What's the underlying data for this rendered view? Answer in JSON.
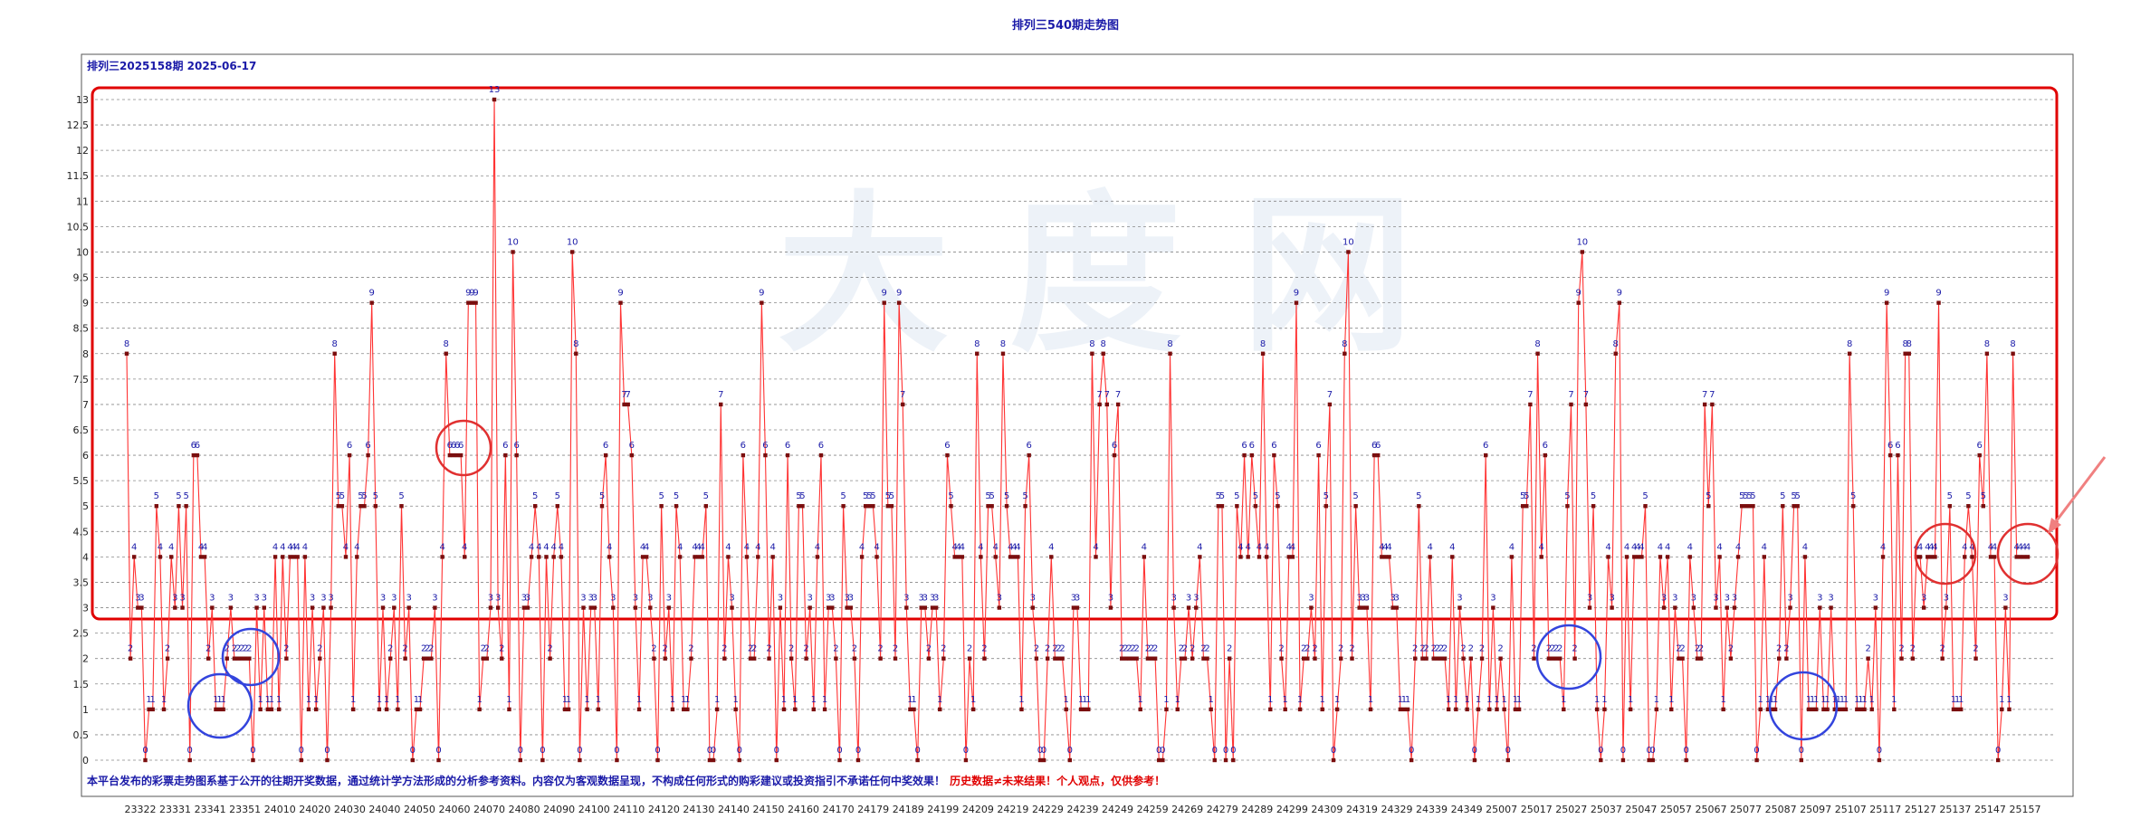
{
  "chart_data": {
    "type": "line",
    "title": "排列三540期走势图",
    "subtitle": "排列三2025158期 2025-06-17",
    "ylim": [
      0,
      13.5
    ],
    "yticks": [
      0,
      0.5,
      1,
      1.5,
      2,
      2.5,
      3,
      3.5,
      4,
      4.5,
      5,
      5.5,
      6,
      6.5,
      7,
      7.5,
      8,
      8.5,
      9,
      9.5,
      10,
      10.5,
      11,
      11.5,
      12,
      12.5,
      13
    ],
    "ytick_labels": [
      "0",
      "0.5",
      "1",
      "1.5",
      "2",
      "2.5",
      "3",
      "3.5",
      "4",
      "4.5",
      "5",
      "5.5",
      "6",
      "6.5",
      "7",
      "7.5",
      "8",
      "8.5",
      "9",
      "9.5",
      "10",
      "10.5",
      "11",
      "11.5",
      "12",
      "12.5",
      "13"
    ],
    "xtick_labels": [
      "23322",
      "23331",
      "23341",
      "23351",
      "24010",
      "24020",
      "24030",
      "24040",
      "24050",
      "24060",
      "24070",
      "24080",
      "24090",
      "24100",
      "24110",
      "24120",
      "24130",
      "24140",
      "24150",
      "24160",
      "24170",
      "24179",
      "24189",
      "24199",
      "24209",
      "24219",
      "24229",
      "24239",
      "24249",
      "24259",
      "24269",
      "24279",
      "24289",
      "24299",
      "24309",
      "24319",
      "24329",
      "24339",
      "24349",
      "25007",
      "25017",
      "25027",
      "25037",
      "25047",
      "25057",
      "25067",
      "25077",
      "25087",
      "25097",
      "25107",
      "25117",
      "25127",
      "25137",
      "25147",
      "25157"
    ],
    "grid": true,
    "legend": "none",
    "colors": {
      "line": "#ff3333",
      "marker": "#7a0e0e",
      "label": "#1a1aa8",
      "highlight_box": "#e00000",
      "circle_red": "#e03030",
      "circle_blue": "#3344dd"
    },
    "series": [
      {
        "values": [
          8,
          2,
          4,
          3,
          3,
          0,
          1,
          1,
          5,
          4,
          1,
          2,
          4,
          3,
          5,
          3,
          5,
          0,
          6,
          6,
          4,
          4,
          2,
          3,
          1,
          1,
          1,
          2,
          3,
          2,
          2,
          2,
          2,
          2,
          0,
          3,
          1,
          3,
          1,
          1,
          4,
          1,
          4,
          2,
          4,
          4,
          4,
          0,
          4,
          1,
          3,
          1,
          2,
          3,
          0,
          3,
          8,
          5,
          5,
          4,
          6,
          1,
          4,
          5,
          5,
          6,
          9,
          5,
          1,
          3,
          1,
          2,
          3,
          1,
          5,
          2,
          3,
          0,
          1,
          1,
          2,
          2,
          2,
          3,
          0,
          4,
          8,
          6,
          6,
          6,
          6,
          4,
          9,
          9,
          9,
          1,
          2,
          2,
          3,
          13,
          3,
          2,
          6,
          1,
          10,
          6,
          0,
          3,
          3,
          4,
          5,
          4,
          0,
          4,
          2,
          4,
          5,
          4,
          1,
          1,
          10,
          8,
          0,
          3,
          1,
          3,
          3,
          1,
          5,
          6,
          4,
          3,
          0,
          9,
          7,
          7,
          6,
          3,
          1,
          4,
          4,
          3,
          2,
          0,
          5,
          2,
          3,
          1,
          5,
          4,
          1,
          1,
          2,
          4,
          4,
          4,
          5,
          0,
          0,
          1,
          7,
          2,
          4,
          3,
          1,
          0,
          6,
          4,
          2,
          2,
          4,
          9,
          6,
          2,
          4,
          0,
          3,
          1,
          6,
          2,
          1,
          5,
          5,
          2,
          3,
          1,
          4,
          6,
          1,
          3,
          3,
          2,
          0,
          5,
          3,
          3,
          2,
          0,
          4,
          5,
          5,
          5,
          4,
          2,
          9,
          5,
          5,
          2,
          9,
          7,
          3,
          1,
          1,
          0,
          3,
          3,
          2,
          3,
          3,
          1,
          2,
          6,
          5,
          4,
          4,
          4,
          0,
          2,
          1,
          8,
          4,
          2,
          5,
          5,
          4,
          3,
          8,
          5,
          4,
          4,
          4,
          1,
          5,
          6,
          3,
          2,
          0,
          0,
          2,
          4,
          2,
          2,
          2,
          1,
          0,
          3,
          3,
          1,
          1,
          1,
          8,
          4,
          7,
          8,
          7,
          3,
          6,
          7,
          2,
          2,
          2,
          2,
          2,
          1,
          4,
          2,
          2,
          2,
          0,
          0,
          1,
          8,
          3,
          1,
          2,
          2,
          3,
          2,
          3,
          4,
          2,
          2,
          1,
          0,
          5,
          5,
          0,
          2,
          0,
          5,
          4,
          6,
          4,
          6,
          5,
          4,
          8,
          4,
          1,
          6,
          5,
          2,
          1,
          4,
          4,
          9,
          1,
          2,
          2,
          3,
          2,
          6,
          1,
          5,
          7,
          0,
          1,
          2,
          8,
          10,
          2,
          5,
          3,
          3,
          3,
          1,
          6,
          6,
          4,
          4,
          4,
          3,
          3,
          1,
          1,
          1,
          0,
          2,
          5,
          2,
          2,
          4,
          2,
          2,
          2,
          2,
          1,
          4,
          1,
          3,
          2,
          1,
          2,
          0,
          1,
          2,
          6,
          1,
          3,
          1,
          2,
          1,
          0,
          4,
          1,
          1,
          5,
          5,
          7,
          2,
          8,
          4,
          6,
          2,
          2,
          2,
          2,
          1,
          5,
          7,
          2,
          9,
          10,
          7,
          3,
          5,
          1,
          0,
          1,
          4,
          3,
          8,
          9,
          0,
          4,
          1,
          4,
          4,
          4,
          5,
          0,
          0,
          1,
          4,
          3,
          4,
          1,
          3,
          2,
          2,
          0,
          4,
          3,
          2,
          2,
          7,
          5,
          7,
          3,
          4,
          1,
          3,
          2,
          3,
          4,
          5,
          5,
          5,
          5,
          0,
          1,
          4,
          1,
          1,
          1,
          2,
          5,
          2,
          3,
          5,
          5,
          0,
          4,
          1,
          1,
          1,
          3,
          1,
          1,
          3,
          1,
          1,
          1,
          1,
          8,
          5,
          1,
          1,
          1,
          2,
          1,
          3,
          0,
          4,
          9,
          6,
          1,
          6,
          2,
          8,
          8,
          2,
          4,
          4,
          3,
          4,
          4,
          4,
          9,
          2,
          3,
          5,
          1,
          1,
          1,
          4,
          5,
          4,
          2,
          6,
          5,
          8,
          4,
          4,
          0,
          1,
          3,
          1,
          8,
          4,
          4,
          4,
          4
        ]
      }
    ]
  },
  "watermark": "大 度 网",
  "disclaimer": {
    "blue_text": "本平台发布的彩票走势图系基于公开的往期开奖数据，通过统计学方法形成的分析参考资料。内容仅为客观数据呈现，不构成任何形式的购彩建议或投资指引不承诺任何中奖效果！",
    "red_text": "历史数据≠未来结果！个人观点，仅供参考！"
  }
}
